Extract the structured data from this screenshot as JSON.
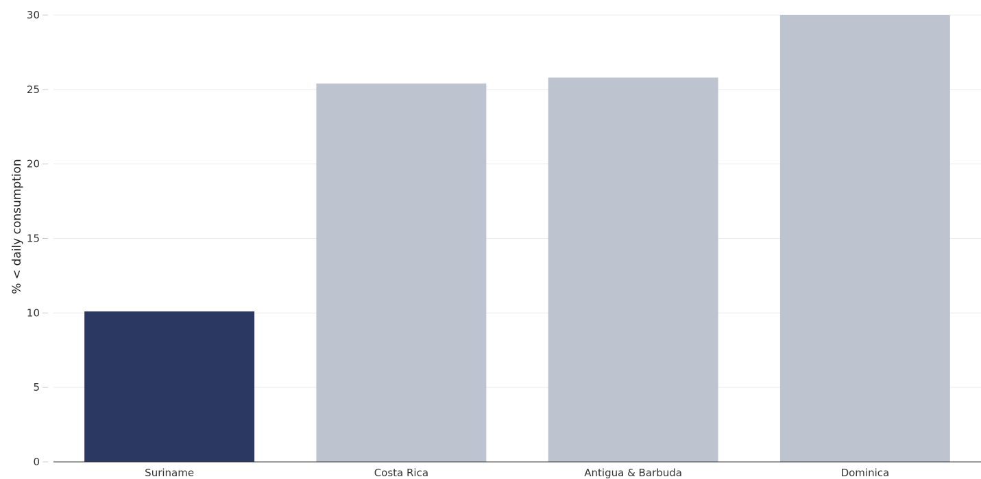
{
  "chart_data": {
    "type": "bar",
    "categories": [
      "Suriname",
      "Costa Rica",
      "Antigua & Barbuda",
      "Dominica"
    ],
    "values": [
      10.1,
      25.4,
      25.8,
      30.0
    ],
    "highlight": "Suriname",
    "title": "",
    "xlabel": "",
    "ylabel": "% < daily consumption",
    "ylim": [
      0,
      30
    ],
    "yticks": [
      0,
      5,
      10,
      15,
      20,
      25,
      30
    ],
    "grid": true,
    "legend": "none",
    "colors": {
      "highlight": "#2b3862",
      "default": "#bec3d0"
    }
  }
}
